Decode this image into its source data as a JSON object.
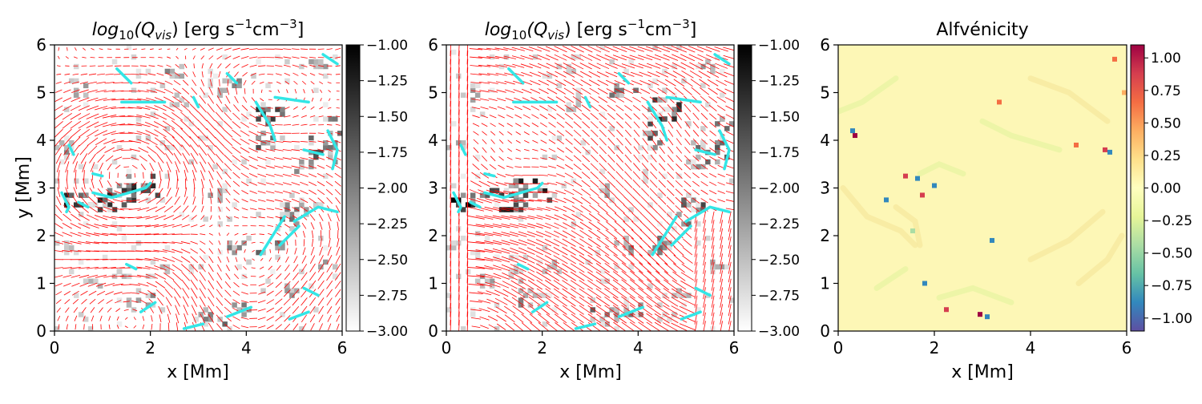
{
  "figure": {
    "panels": [
      {
        "title_func": "log",
        "title_sub1": "10",
        "title_q": "(Q",
        "title_sub2": "vis",
        "title_units_a": ") [erg s",
        "title_sup1": "−1",
        "title_units_b": "cm",
        "title_sup2": "−3",
        "title_units_c": "]",
        "xlabel": "x [Mm]",
        "ylabel": "y [Mm]"
      },
      {
        "title_func": "log",
        "title_sub1": "10",
        "title_q": "(Q",
        "title_sub2": "vis",
        "title_units_a": ") [erg s",
        "title_sup1": "−1",
        "title_units_b": "cm",
        "title_sup2": "−3",
        "title_units_c": "]",
        "xlabel": "x [Mm]"
      },
      {
        "title": "Alfvénicity",
        "xlabel": "x [Mm]"
      }
    ],
    "colors": {
      "vectors": "#ff0000",
      "contours": "#33e6e6",
      "grey_cmap": [
        "#ffffff",
        "#000000"
      ],
      "spectral_cmap": [
        "#5e4fa2",
        "#3288bd",
        "#66c2a5",
        "#abdda4",
        "#e6f598",
        "#ffffbf",
        "#fee08b",
        "#fdae61",
        "#f46d43",
        "#d53e4f",
        "#9e0142"
      ]
    }
  },
  "chart_data": [
    {
      "type": "heatmap",
      "overlay": "red velocity vectors with cyan contours",
      "x_ticks": [
        "0",
        "2",
        "4",
        "6"
      ],
      "y_ticks": [
        "0",
        "1",
        "2",
        "3",
        "4",
        "5",
        "6"
      ],
      "xlim": [
        0,
        6
      ],
      "ylim": [
        0,
        6
      ],
      "colorbar": {
        "range": [
          -3.0,
          -1.0
        ],
        "ticks": [
          "−1.00",
          "−1.25",
          "−1.50",
          "−1.75",
          "−2.00",
          "−2.25",
          "−2.50",
          "−2.75",
          "−3.00"
        ],
        "cmap": "greys"
      }
    },
    {
      "type": "heatmap",
      "overlay": "red magnetic field vectors with cyan contours",
      "x_ticks": [
        "0",
        "2",
        "4",
        "6"
      ],
      "y_ticks": [
        "0",
        "1",
        "2",
        "3",
        "4",
        "5",
        "6"
      ],
      "xlim": [
        0,
        6
      ],
      "ylim": [
        0,
        6
      ],
      "colorbar": {
        "range": [
          -3.0,
          -1.0
        ],
        "ticks": [
          "−1.00",
          "−1.25",
          "−1.50",
          "−1.75",
          "−2.00",
          "−2.25",
          "−2.50",
          "−2.75",
          "−3.00"
        ],
        "cmap": "greys"
      }
    },
    {
      "type": "heatmap",
      "x_ticks": [
        "0",
        "2",
        "4",
        "6"
      ],
      "y_ticks": [
        "0",
        "1",
        "2",
        "3",
        "4",
        "5",
        "6"
      ],
      "xlim": [
        0,
        6
      ],
      "ylim": [
        0,
        6
      ],
      "colorbar": {
        "range": [
          -1.1,
          1.1
        ],
        "ticks": [
          "1.00",
          "0.75",
          "0.50",
          "0.25",
          "0.00",
          "−0.25",
          "−0.50",
          "−0.75",
          "−1.00"
        ],
        "tick_values": [
          1.0,
          0.75,
          0.5,
          0.25,
          0.0,
          -0.25,
          -0.5,
          -0.75,
          -1.0
        ],
        "cmap": "spectral"
      },
      "hotspots": [
        {
          "x": 0.35,
          "y": 4.1,
          "v": 1.0
        },
        {
          "x": 0.3,
          "y": 4.2,
          "v": -0.9
        },
        {
          "x": 1.4,
          "y": 3.25,
          "v": 0.9
        },
        {
          "x": 1.65,
          "y": 3.2,
          "v": -0.9
        },
        {
          "x": 1.0,
          "y": 2.75,
          "v": -0.9
        },
        {
          "x": 1.75,
          "y": 2.85,
          "v": 0.8
        },
        {
          "x": 2.0,
          "y": 3.05,
          "v": -0.8
        },
        {
          "x": 3.35,
          "y": 4.8,
          "v": 0.7
        },
        {
          "x": 4.95,
          "y": 3.9,
          "v": 0.7
        },
        {
          "x": 5.55,
          "y": 3.8,
          "v": 0.9
        },
        {
          "x": 5.65,
          "y": 3.75,
          "v": -0.8
        },
        {
          "x": 1.8,
          "y": 1.0,
          "v": -0.8
        },
        {
          "x": 2.25,
          "y": 0.45,
          "v": 0.8
        },
        {
          "x": 2.95,
          "y": 0.35,
          "v": 1.0
        },
        {
          "x": 3.1,
          "y": 0.3,
          "v": -0.9
        },
        {
          "x": 3.2,
          "y": 1.9,
          "v": -0.8
        },
        {
          "x": 5.75,
          "y": 5.7,
          "v": 0.6
        },
        {
          "x": 1.55,
          "y": 2.1,
          "v": -0.5
        },
        {
          "x": 5.95,
          "y": 5.0,
          "v": 0.5
        }
      ]
    }
  ]
}
